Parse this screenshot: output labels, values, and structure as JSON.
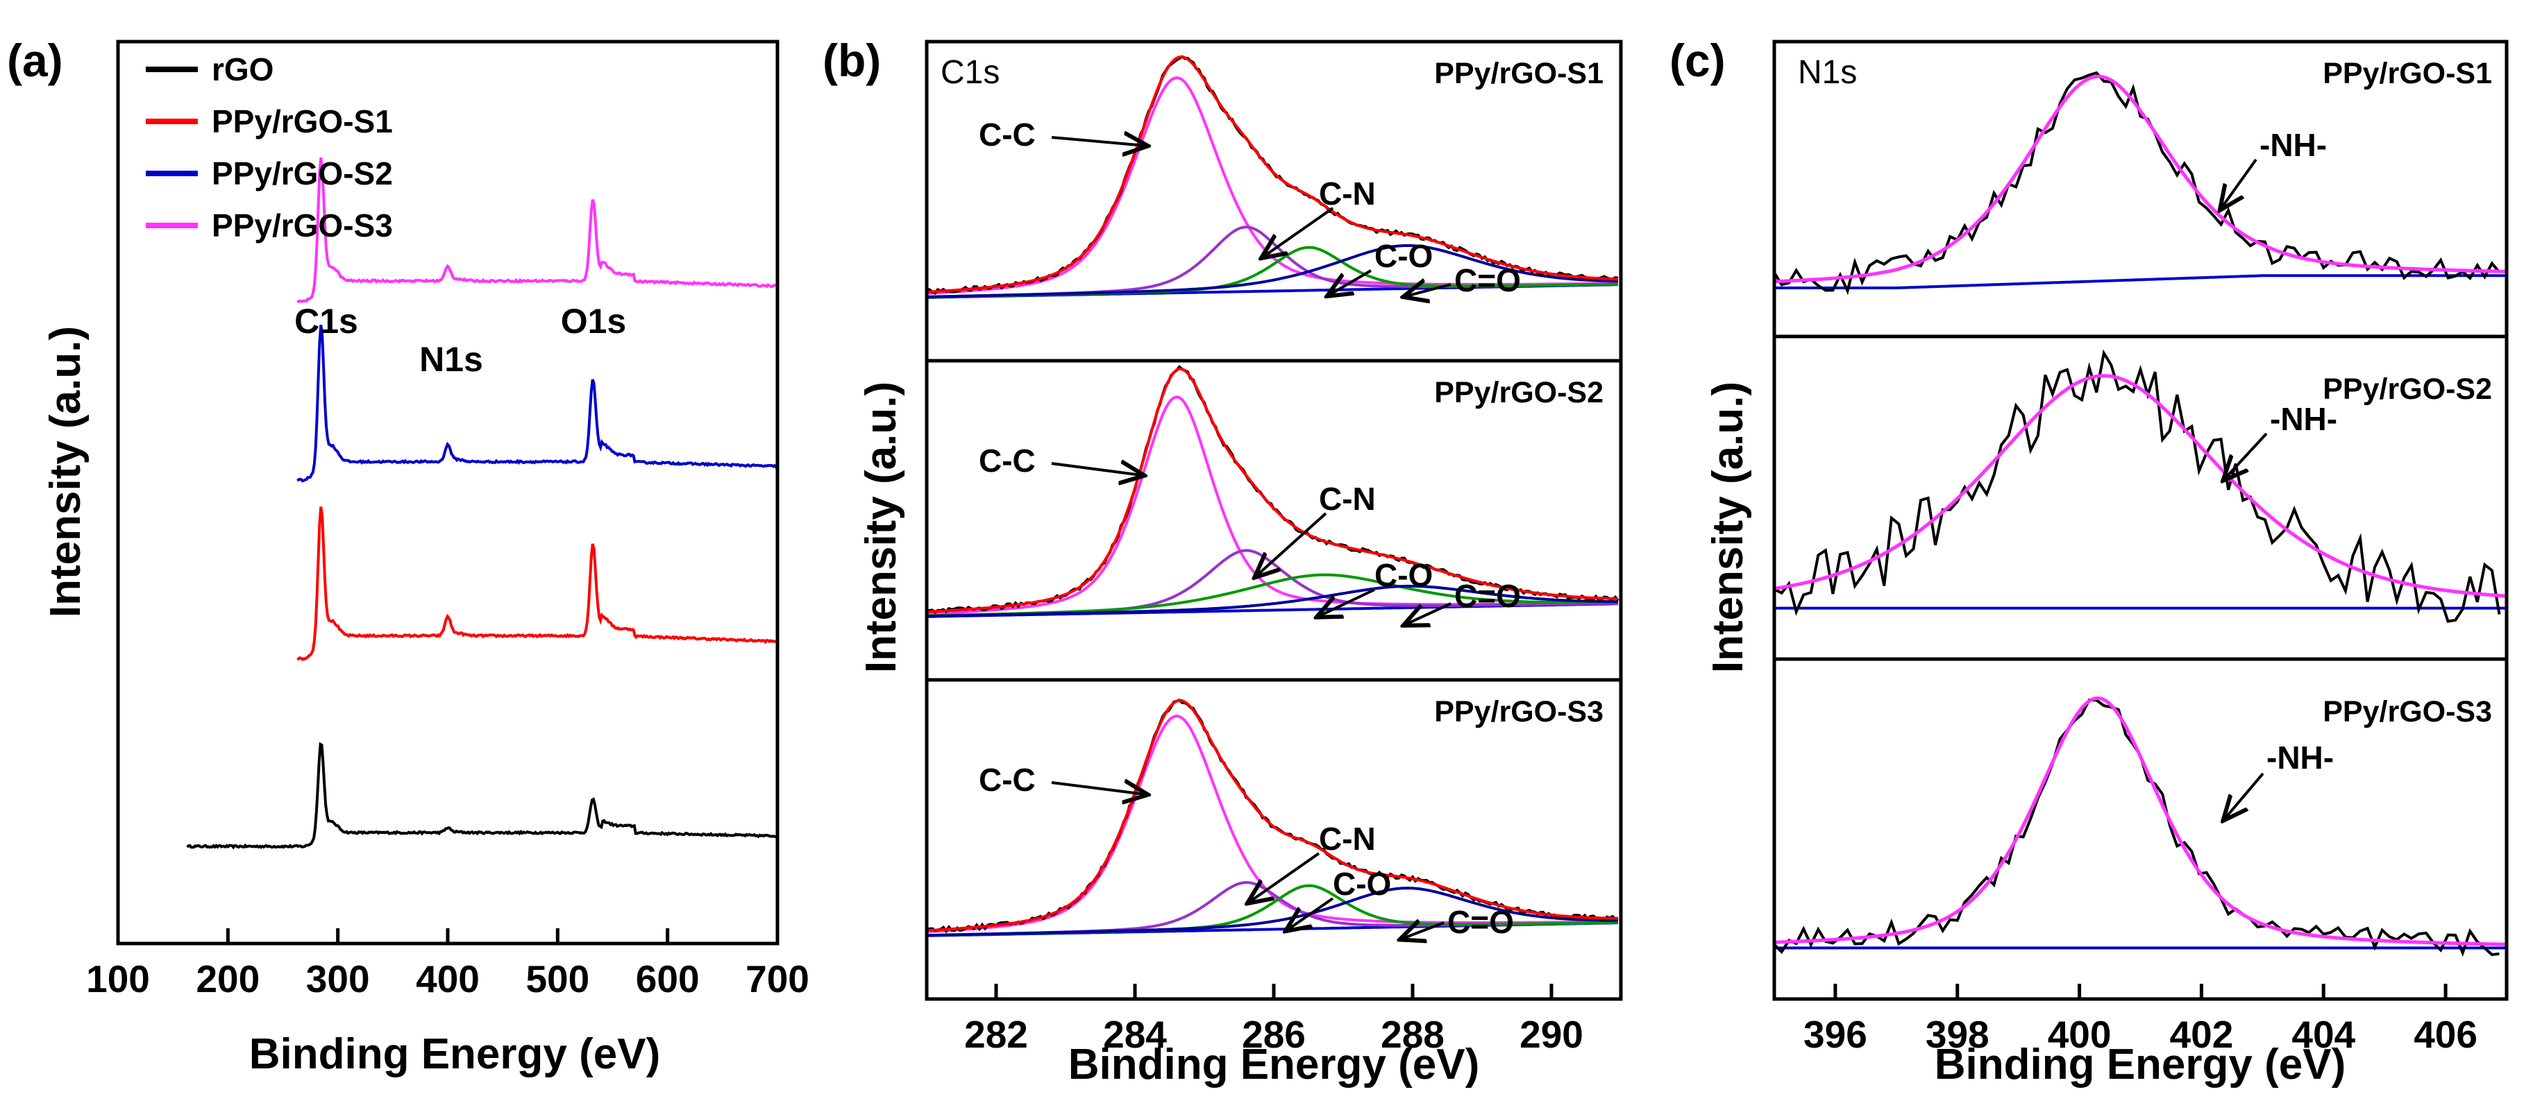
{
  "colors": {
    "rGO": "#000000",
    "S1": "#ff0000",
    "S2": "#0000cc",
    "S3": "#ff33ff",
    "CC": "#ff33ff",
    "CN": "#9933cc",
    "CO": "#009900",
    "CdO": "#000099",
    "NH": "#ff33ff",
    "baseline": "#0000cc",
    "raw": "#000000",
    "envelope": "#ff0000"
  },
  "chart_data": [
    {
      "panel": "(a)",
      "type": "line",
      "xlabel": "Binding Energy (eV)",
      "ylabel": "Intensity (a.u.)",
      "xlim": [
        100,
        700
      ],
      "xticks": [
        100,
        200,
        300,
        400,
        500,
        600,
        700
      ],
      "legend": [
        "rGO",
        "PPy/rGO-S1",
        "PPy/rGO-S2",
        "PPy/rGO-S3"
      ],
      "peak_labels": [
        "C1s",
        "N1s",
        "O1s"
      ],
      "peak_positions_eV": [
        284.6,
        400,
        532
      ],
      "series": [
        {
          "name": "rGO",
          "offset": 0.0,
          "base_low": 0.0,
          "base_high": 0.06,
          "step_at": 300,
          "peaks": [
            {
              "x": 284.6,
              "h": 0.4
            },
            {
              "x": 400,
              "h": 0.02
            },
            {
              "x": 532,
              "h": 0.14
            }
          ]
        },
        {
          "name": "PPy/rGO-S1",
          "offset": 0.82,
          "base_low": 0.0,
          "base_high": 0.1,
          "step_at": 300,
          "peaks": [
            {
              "x": 284.6,
              "h": 0.58
            },
            {
              "x": 400,
              "h": 0.08
            },
            {
              "x": 532,
              "h": 0.38
            }
          ]
        },
        {
          "name": "PPy/rGO-S2",
          "offset": 1.6,
          "base_low": 0.0,
          "base_high": 0.08,
          "step_at": 300,
          "peaks": [
            {
              "x": 284.6,
              "h": 0.6
            },
            {
              "x": 400,
              "h": 0.07
            },
            {
              "x": 532,
              "h": 0.34
            }
          ]
        },
        {
          "name": "PPy/rGO-S3",
          "offset": 2.38,
          "base_low": 0.0,
          "base_high": 0.09,
          "step_at": 300,
          "peaks": [
            {
              "x": 284.6,
              "h": 0.55
            },
            {
              "x": 400,
              "h": 0.06
            },
            {
              "x": 532,
              "h": 0.34
            }
          ]
        }
      ]
    },
    {
      "panel": "(b)",
      "type": "line",
      "core_level": "C1s",
      "xlabel": "Binding Energy (eV)",
      "ylabel": "Intensity (a.u.)",
      "xlim": [
        281,
        291
      ],
      "xticks": [
        282,
        284,
        286,
        288,
        290
      ],
      "components": [
        "C-C",
        "C-N",
        "C-O",
        "C=O"
      ],
      "subplots": [
        {
          "sample": "PPy/rGO-S1",
          "peaks": [
            {
              "name": "C-C",
              "x": 284.6,
              "h": 1.0,
              "w": 0.65
            },
            {
              "name": "C-N",
              "x": 285.6,
              "h": 0.3,
              "w": 0.55
            },
            {
              "name": "C-O",
              "x": 286.5,
              "h": 0.2,
              "w": 0.55
            },
            {
              "name": "C=O",
              "x": 287.9,
              "h": 0.2,
              "w": 1.1
            }
          ]
        },
        {
          "sample": "PPy/rGO-S2",
          "peaks": [
            {
              "name": "C-C",
              "x": 284.6,
              "h": 1.0,
              "w": 0.55
            },
            {
              "name": "C-N",
              "x": 285.6,
              "h": 0.28,
              "w": 0.6
            },
            {
              "name": "C-O",
              "x": 286.7,
              "h": 0.16,
              "w": 1.2
            },
            {
              "name": "C=O",
              "x": 287.9,
              "h": 0.1,
              "w": 1.2
            }
          ]
        },
        {
          "sample": "PPy/rGO-S3",
          "peaks": [
            {
              "name": "C-C",
              "x": 284.6,
              "h": 1.0,
              "w": 0.65
            },
            {
              "name": "C-N",
              "x": 285.6,
              "h": 0.22,
              "w": 0.55
            },
            {
              "name": "C-O",
              "x": 286.5,
              "h": 0.2,
              "w": 0.55
            },
            {
              "name": "C=O",
              "x": 287.9,
              "h": 0.18,
              "w": 1.0
            }
          ]
        }
      ]
    },
    {
      "panel": "(c)",
      "type": "line",
      "core_level": "N1s",
      "xlabel": "Binding Energy (eV)",
      "ylabel": "Intensity (a.u.)",
      "xlim": [
        395,
        407
      ],
      "xticks": [
        396,
        398,
        400,
        402,
        404,
        406
      ],
      "component": "-NH-",
      "subplots": [
        {
          "sample": "PPy/rGO-S1",
          "peak": {
            "x": 400.3,
            "h": 1.0,
            "w": 1.25
          },
          "noise": 0.07
        },
        {
          "sample": "PPy/rGO-S2",
          "peak": {
            "x": 400.4,
            "h": 1.0,
            "w": 2.0
          },
          "noise": 0.14
        },
        {
          "sample": "PPy/rGO-S3",
          "peak": {
            "x": 400.3,
            "h": 1.0,
            "w": 1.05
          },
          "noise": 0.05
        }
      ]
    }
  ]
}
